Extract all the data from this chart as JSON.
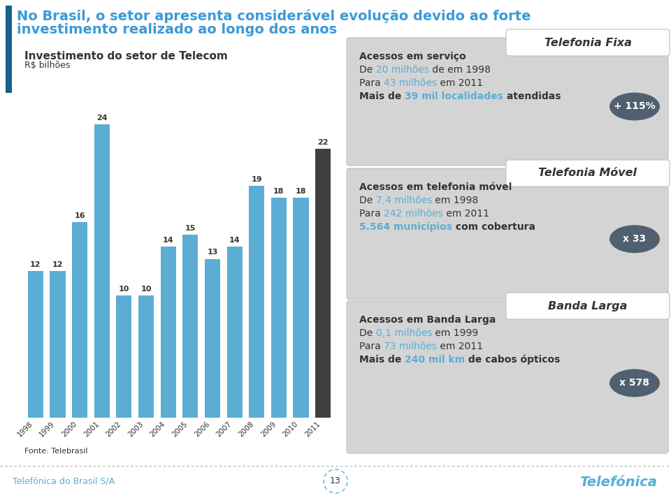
{
  "title_line1": "No Brasil, o setor apresenta considerável evolução devido ao forte",
  "title_line2": "investimento realizado ao longo dos anos",
  "title_color": "#3a9ad9",
  "bg_color": "#ffffff",
  "bar_chart_title": "Investimento do setor de Telecom",
  "bar_chart_subtitle": "R$ bilhões",
  "years": [
    "1998",
    "1999",
    "2000",
    "2001",
    "2002",
    "2003",
    "2004",
    "2005",
    "2006",
    "2007",
    "2008",
    "2009",
    "2010",
    "2011"
  ],
  "values": [
    12,
    12,
    16,
    24,
    10,
    10,
    14,
    15,
    13,
    14,
    19,
    18,
    18,
    22
  ],
  "bar_color_normal": "#5badd4",
  "bar_color_last": "#404040",
  "fonte_text": "Fonte: Telebrasil",
  "footer_left": "Telefônica do Brasil S/A",
  "footer_page": "13",
  "panel1_title": "Telefonia Fixa",
  "panel1_badge": "+ 115%",
  "panel2_title": "Telefonia Móvel",
  "panel2_badge": "x 33",
  "panel3_title": "Banda Larga",
  "panel3_badge": "x 578",
  "accent_color": "#5badd4",
  "dark_text": "#333333",
  "panel_bg": "#d4d4d4",
  "badge_bg": "#506070",
  "left_bar_color": "#1a5f8a",
  "separator_color": "#aaaaaa",
  "footer_color": "#5badd4"
}
